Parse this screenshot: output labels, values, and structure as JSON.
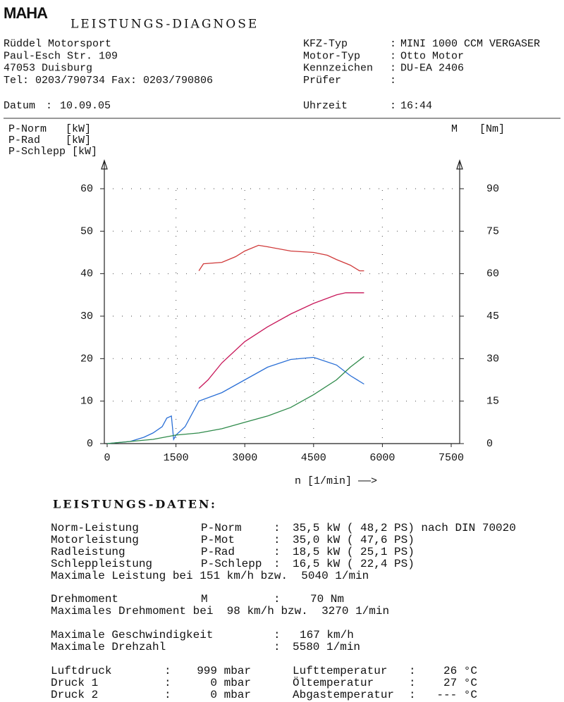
{
  "header": {
    "logo": "MAHA",
    "title": "LEISTUNGS-DIAGNOSE"
  },
  "sep": ":",
  "company": [
    "Rüddel Motorsport",
    "Paul-Esch Str. 109",
    "47053 Duisburg",
    "Tel: 0203/790734 Fax: 0203/790806"
  ],
  "vehicle": [
    {
      "label": "KFZ-Typ",
      "value": "MINI 1000 CCM VERGASER"
    },
    {
      "label": "Motor-Typ",
      "value": "Otto Motor"
    },
    {
      "label": "Kennzeichen",
      "value": "DU-EA 2406"
    },
    {
      "label": "Prüfer"
    }
  ],
  "date": {
    "label": "Datum",
    "value": "10.09.05"
  },
  "time": {
    "label": "Uhrzeit",
    "value": "16:44"
  },
  "chart_data": {
    "type": "line",
    "x_label": "n [1/min] ——>",
    "xlim": [
      0,
      7500
    ],
    "xticks": [
      0,
      1500,
      3000,
      4500,
      6000,
      7500
    ],
    "ylim": [
      0,
      60
    ],
    "yticks": [
      0,
      10,
      20,
      30,
      40,
      50,
      60
    ],
    "y2lim": [
      0,
      90
    ],
    "y2ticks": [
      0,
      15,
      30,
      45,
      60,
      75,
      90
    ],
    "grid": true,
    "series": [
      {
        "name": "P-Norm",
        "unit": "[kW]",
        "color": "#c8185a",
        "x": [
          2000,
          2200,
          2500,
          3000,
          3500,
          4000,
          4500,
          5000,
          5200,
          5600
        ],
        "values": [
          13,
          15,
          19,
          24,
          27.5,
          30.5,
          33,
          35,
          35.5,
          35.5
        ]
      },
      {
        "name": "P-Rad",
        "unit": "[kW]",
        "color": "#2a6fd6",
        "x": [
          0,
          500,
          800,
          1000,
          1200,
          1300,
          1400,
          1450,
          1500,
          1700,
          1900,
          2000,
          2500,
          3000,
          3500,
          4000,
          4500,
          5000,
          5300,
          5600
        ],
        "values": [
          0,
          0.5,
          1.5,
          2.5,
          4,
          6,
          6.5,
          1,
          2,
          4,
          8,
          10,
          12,
          15,
          18,
          19.8,
          20.3,
          18.5,
          16,
          14
        ]
      },
      {
        "name": "P-Schlepp",
        "unit": "[kW]",
        "color": "#2e8a4a",
        "x": [
          0,
          1000,
          1500,
          2000,
          2500,
          3000,
          3500,
          4000,
          4500,
          5000,
          5300,
          5600
        ],
        "values": [
          0,
          1,
          2,
          2.5,
          3.5,
          5,
          6.5,
          8.5,
          11.5,
          15,
          18,
          20.5
        ]
      },
      {
        "name": "M",
        "unit": "[Nm]",
        "color": "#d03a3a",
        "axis": "y2",
        "x": [
          2000,
          2100,
          2500,
          2800,
          3000,
          3300,
          3500,
          4000,
          4500,
          4800,
          5000,
          5300,
          5500,
          5600
        ],
        "values": [
          61,
          63.5,
          64,
          66,
          68,
          70,
          69.5,
          68,
          67.5,
          66.5,
          65,
          63,
          61,
          61
        ]
      }
    ]
  },
  "results": {
    "title": "LEISTUNGS-DATEN:",
    "rows": [
      {
        "color": "#c8185a",
        "cells": [
          "Norm-Leistung",
          "P-Norm",
          ":",
          "35,5 kW ( 48,2 PS) nach DIN 70020"
        ]
      },
      {
        "cells": [
          "Motorleistung",
          "P-Mot",
          ":",
          "35,0 kW ( 47,6 PS)"
        ]
      },
      {
        "color": "#2a6fd6",
        "cells": [
          "Radleistung",
          "P-Rad",
          ":",
          "18,5 kW ( 25,1 PS)"
        ]
      },
      {
        "color": "#2e8a4a",
        "cells": [
          "Schleppleistung",
          "P-Schlepp",
          ":",
          "16,5 kW ( 22,4 PS)"
        ]
      },
      {
        "cells": [
          "Maximale Leistung bei 151 km/h bzw.  5040 1/min"
        ]
      },
      {
        "color": "#d03a3a",
        "cells": [
          "Drehmoment",
          "M",
          ":",
          "70 Nm"
        ]
      },
      {
        "cells": [
          "Maximales Drehmoment bei  98 km/h bzw.  3270 1/min"
        ]
      },
      {
        "cells": [
          "Maximale Geschwindigkeit",
          ":",
          "167 km/h"
        ]
      },
      {
        "cells": [
          "Maximale Drehzahl",
          ":",
          "5580 1/min"
        ]
      },
      {
        "cells": [
          "Luftdruck",
          ":",
          "999 mbar",
          "Lufttemperatur",
          ":",
          "26 °C"
        ]
      },
      {
        "cells": [
          "Druck 1",
          ":",
          "0 mbar",
          "Öltemperatur",
          ":",
          "27 °C"
        ]
      },
      {
        "cells": [
          "Druck 2",
          ":",
          "0 mbar",
          "Abgastemperatur",
          ":",
          "--- °C"
        ]
      }
    ]
  }
}
